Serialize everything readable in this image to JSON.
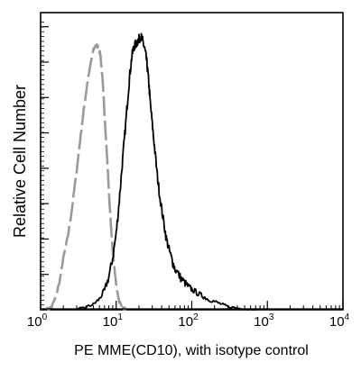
{
  "chart_data": {
    "type": "line",
    "title": "",
    "xlabel": "PE MME(CD10),  with isotype control",
    "ylabel": "Relative Cell Number",
    "x_scale": "log",
    "xlim": [
      1,
      10000
    ],
    "ylim": [
      0,
      1
    ],
    "grid": false,
    "legend": "none",
    "x_ticks": [
      {
        "base": "10",
        "exp": "0",
        "value": 1
      },
      {
        "base": "10",
        "exp": "1",
        "value": 10
      },
      {
        "base": "10",
        "exp": "2",
        "value": 100
      },
      {
        "base": "10",
        "exp": "3",
        "value": 1000
      },
      {
        "base": "10",
        "exp": "4",
        "value": 10000
      }
    ],
    "series": [
      {
        "color": "#9a9a9a",
        "dash": true,
        "x": [
          1.2,
          1.4,
          1.6,
          1.8,
          2.0,
          2.3,
          2.6,
          3.0,
          3.4,
          3.8,
          4.2,
          4.6,
          5.0,
          5.4,
          5.8,
          6.2,
          6.6,
          7.0,
          7.6,
          8.2,
          9.0,
          10,
          11,
          12,
          13.5
        ],
        "y": [
          0.0,
          0.01,
          0.05,
          0.11,
          0.19,
          0.27,
          0.37,
          0.51,
          0.64,
          0.75,
          0.84,
          0.9,
          0.95,
          0.97,
          0.96,
          0.93,
          0.84,
          0.72,
          0.55,
          0.38,
          0.21,
          0.09,
          0.03,
          0.01,
          0.0
        ]
      },
      {
        "color": "#000000",
        "dash": false,
        "x": [
          3.0,
          4.0,
          5.0,
          6.0,
          7.0,
          8.0,
          9.0,
          10,
          11,
          12,
          13,
          14,
          15,
          16,
          17,
          18,
          19,
          20,
          21,
          22,
          23,
          24,
          25,
          26,
          27,
          28,
          30,
          32,
          35,
          38,
          42,
          46,
          50,
          55,
          60,
          70,
          80,
          90,
          100,
          120,
          140,
          160,
          200,
          250,
          300,
          400,
          500,
          700
        ],
        "y": [
          0.0,
          0.01,
          0.02,
          0.04,
          0.07,
          0.12,
          0.19,
          0.28,
          0.4,
          0.53,
          0.64,
          0.75,
          0.85,
          0.92,
          0.96,
          0.97,
          0.98,
          0.99,
          1.0,
          0.99,
          0.97,
          0.95,
          0.92,
          0.88,
          0.83,
          0.77,
          0.68,
          0.6,
          0.49,
          0.41,
          0.33,
          0.26,
          0.22,
          0.18,
          0.15,
          0.12,
          0.1,
          0.085,
          0.075,
          0.06,
          0.05,
          0.04,
          0.03,
          0.02,
          0.012,
          0.006,
          0.003,
          0.0
        ]
      }
    ]
  }
}
